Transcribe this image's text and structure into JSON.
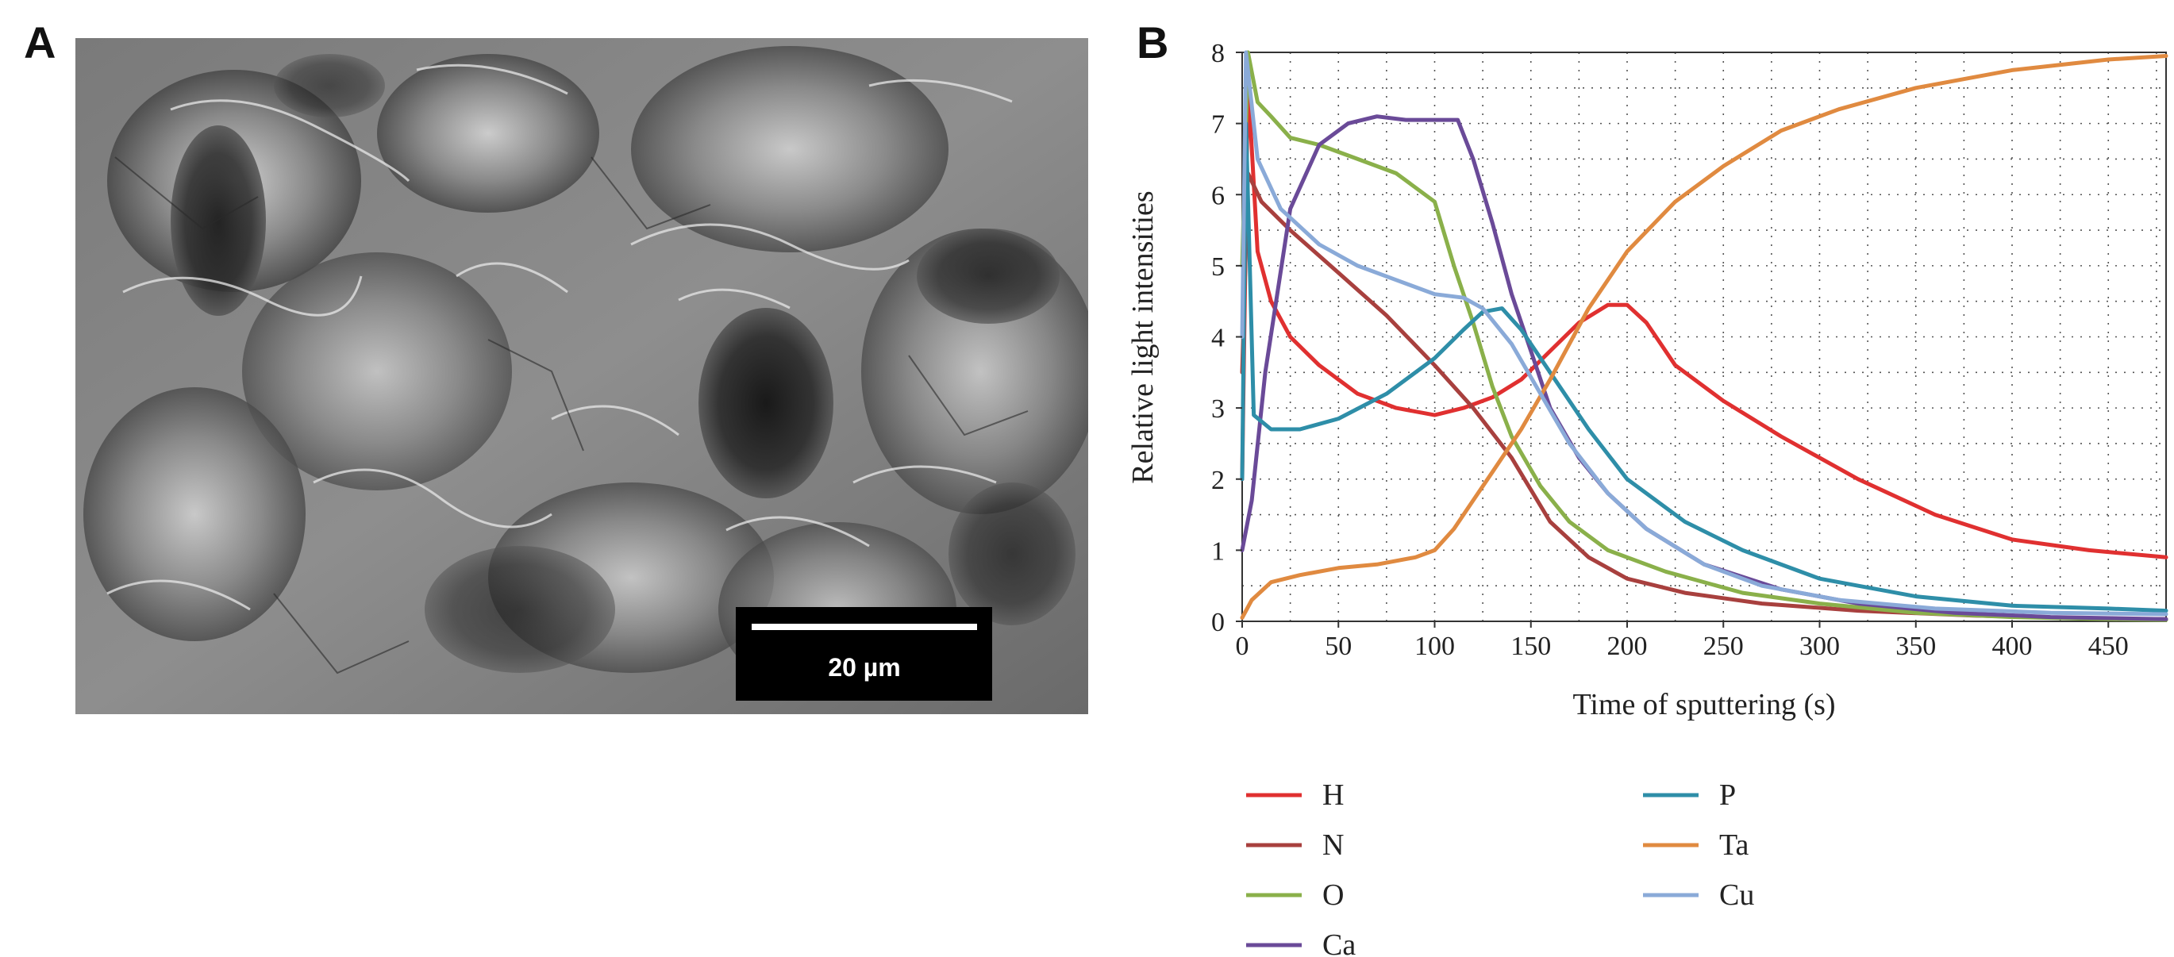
{
  "panel_a": {
    "label": "A",
    "image_description_icon": "sem-micrograph-icon",
    "scale_bar_label": "20 µm"
  },
  "panel_b": {
    "label": "B"
  },
  "chart_data": {
    "type": "line",
    "title": "",
    "xlabel": "Time of sputtering (s)",
    "ylabel": "Relative light intensities",
    "xlim": [
      0,
      480
    ],
    "ylim": [
      0,
      8
    ],
    "xticks": [
      0,
      50,
      100,
      150,
      200,
      250,
      300,
      350,
      400,
      450
    ],
    "yticks": [
      0,
      1,
      2,
      3,
      4,
      5,
      6,
      7,
      8
    ],
    "grid": true,
    "legend_position": "bottom",
    "series": [
      {
        "name": "H",
        "color": "#e03030",
        "x": [
          0,
          3,
          8,
          15,
          25,
          40,
          60,
          80,
          100,
          115,
          130,
          145,
          160,
          175,
          190,
          200,
          210,
          225,
          250,
          280,
          320,
          360,
          400,
          440,
          480
        ],
        "y": [
          2.0,
          7.6,
          5.2,
          4.5,
          4.0,
          3.6,
          3.2,
          3.0,
          2.9,
          3.0,
          3.15,
          3.4,
          3.8,
          4.2,
          4.45,
          4.45,
          4.2,
          3.6,
          3.1,
          2.6,
          2.0,
          1.5,
          1.15,
          1.0,
          0.9
        ]
      },
      {
        "name": "N",
        "color": "#a8403e",
        "x": [
          0,
          3,
          10,
          25,
          50,
          75,
          100,
          120,
          140,
          160,
          180,
          200,
          230,
          270,
          320,
          380,
          440,
          480
        ],
        "y": [
          3.5,
          6.3,
          5.9,
          5.5,
          4.9,
          4.3,
          3.6,
          3.0,
          2.3,
          1.4,
          0.9,
          0.6,
          0.4,
          0.25,
          0.15,
          0.08,
          0.04,
          0.03
        ]
      },
      {
        "name": "O",
        "color": "#8ab04a",
        "x": [
          0,
          3,
          8,
          15,
          25,
          40,
          60,
          80,
          100,
          110,
          120,
          130,
          140,
          155,
          170,
          190,
          220,
          260,
          300,
          350,
          400,
          450,
          480
        ],
        "y": [
          5.0,
          8.0,
          7.3,
          7.1,
          6.8,
          6.7,
          6.5,
          6.3,
          5.9,
          5.0,
          4.2,
          3.3,
          2.6,
          1.9,
          1.4,
          1.0,
          0.7,
          0.4,
          0.25,
          0.12,
          0.06,
          0.03,
          0.02
        ]
      },
      {
        "name": "Ca",
        "color": "#6a4a98",
        "x": [
          0,
          5,
          12,
          25,
          40,
          55,
          70,
          85,
          100,
          112,
          120,
          130,
          140,
          150,
          160,
          175,
          190,
          210,
          240,
          280,
          320,
          370,
          420,
          480
        ],
        "y": [
          1.0,
          1.7,
          3.5,
          5.8,
          6.7,
          7.0,
          7.1,
          7.05,
          7.05,
          7.05,
          6.5,
          5.6,
          4.6,
          3.8,
          3.0,
          2.3,
          1.8,
          1.3,
          0.8,
          0.45,
          0.25,
          0.12,
          0.06,
          0.03
        ]
      },
      {
        "name": "P",
        "color": "#2e8ea8",
        "x": [
          0,
          2,
          6,
          15,
          30,
          50,
          75,
          100,
          115,
          125,
          135,
          145,
          160,
          180,
          200,
          230,
          260,
          300,
          350,
          400,
          450,
          480
        ],
        "y": [
          2.0,
          7.0,
          2.9,
          2.7,
          2.7,
          2.85,
          3.2,
          3.7,
          4.1,
          4.35,
          4.4,
          4.1,
          3.5,
          2.7,
          2.0,
          1.4,
          1.0,
          0.6,
          0.35,
          0.22,
          0.18,
          0.15
        ]
      },
      {
        "name": "Ta",
        "color": "#e08a40",
        "x": [
          0,
          5,
          15,
          30,
          50,
          70,
          90,
          100,
          110,
          120,
          130,
          145,
          160,
          180,
          200,
          225,
          250,
          280,
          310,
          350,
          400,
          450,
          480
        ],
        "y": [
          0.05,
          0.3,
          0.55,
          0.65,
          0.75,
          0.8,
          0.9,
          1.0,
          1.3,
          1.7,
          2.1,
          2.7,
          3.4,
          4.4,
          5.2,
          5.9,
          6.4,
          6.9,
          7.2,
          7.5,
          7.75,
          7.9,
          7.95
        ]
      },
      {
        "name": "Cu",
        "color": "#8aaad8",
        "x": [
          0,
          2,
          8,
          20,
          40,
          60,
          80,
          100,
          115,
          125,
          140,
          155,
          170,
          190,
          210,
          240,
          270,
          310,
          360,
          420,
          480
        ],
        "y": [
          4.0,
          8.0,
          6.5,
          5.8,
          5.3,
          5.0,
          4.8,
          4.6,
          4.55,
          4.4,
          3.9,
          3.2,
          2.5,
          1.8,
          1.3,
          0.8,
          0.5,
          0.3,
          0.18,
          0.12,
          0.1
        ]
      }
    ]
  }
}
